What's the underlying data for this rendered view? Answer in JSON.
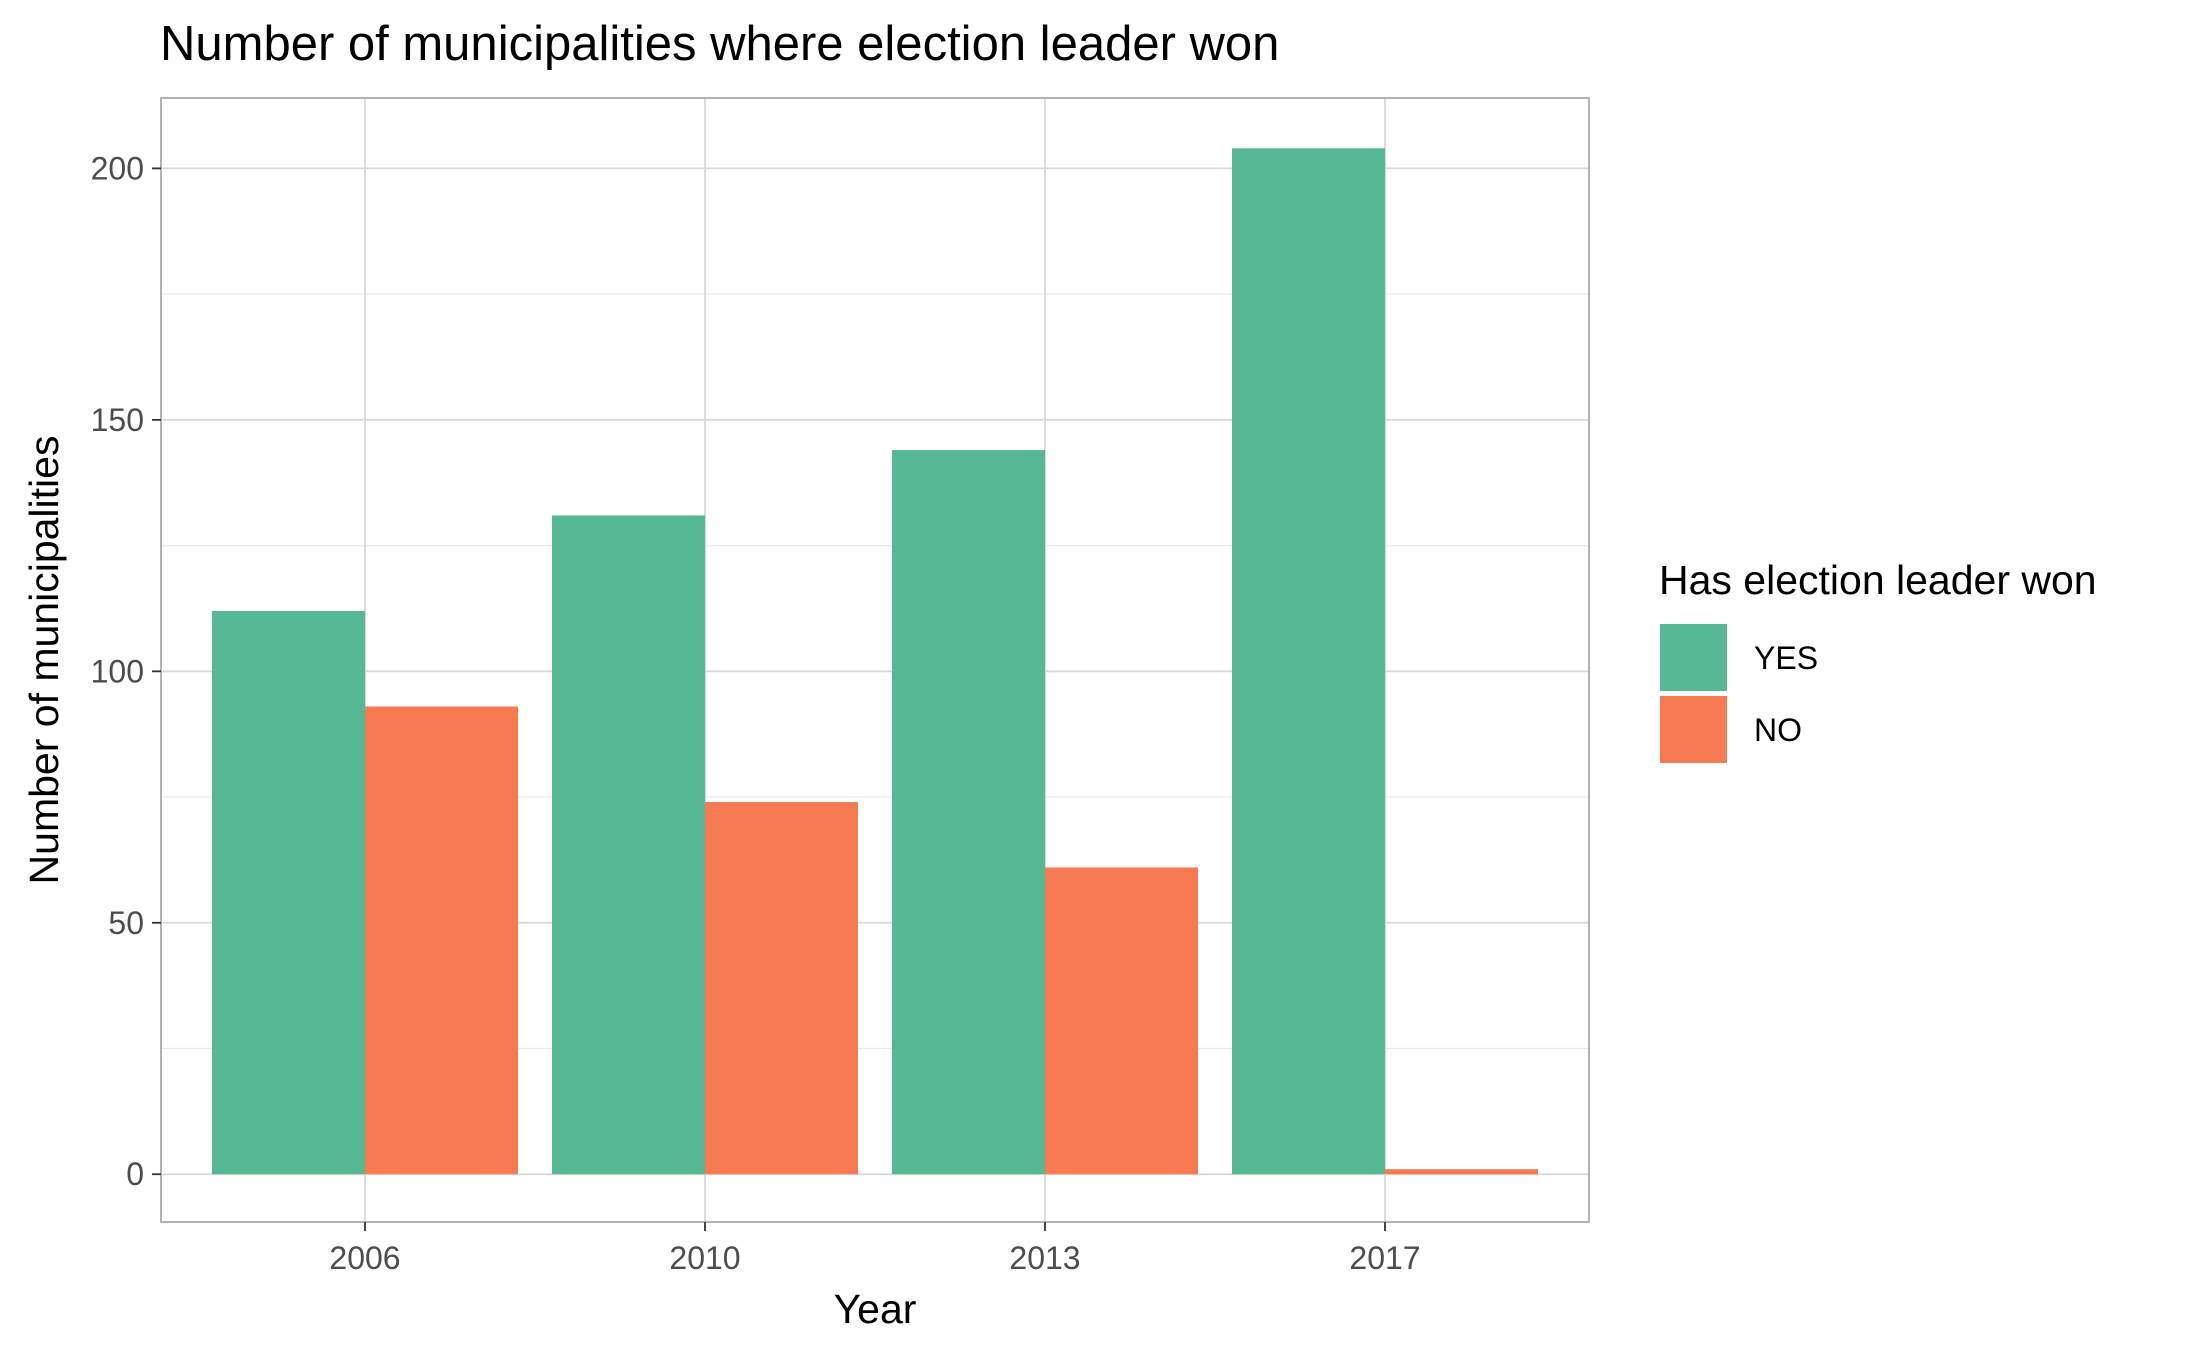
{
  "chart_data": {
    "type": "bar",
    "title": "Number of municipalities where election leader won",
    "xlabel": "Year",
    "ylabel": "Number of municipalities",
    "categories": [
      "2006",
      "2010",
      "2013",
      "2017"
    ],
    "series": [
      {
        "name": "YES",
        "color": "#57b994",
        "values": [
          112,
          131,
          144,
          204
        ]
      },
      {
        "name": "NO",
        "color": "#f77a53",
        "values": [
          93,
          74,
          61,
          1
        ]
      }
    ],
    "ylim": [
      -9.5,
      214
    ],
    "yticks": [
      0,
      50,
      100,
      150,
      200
    ],
    "grid": true,
    "legend": {
      "title": "Has election leader won",
      "position": "right"
    }
  }
}
